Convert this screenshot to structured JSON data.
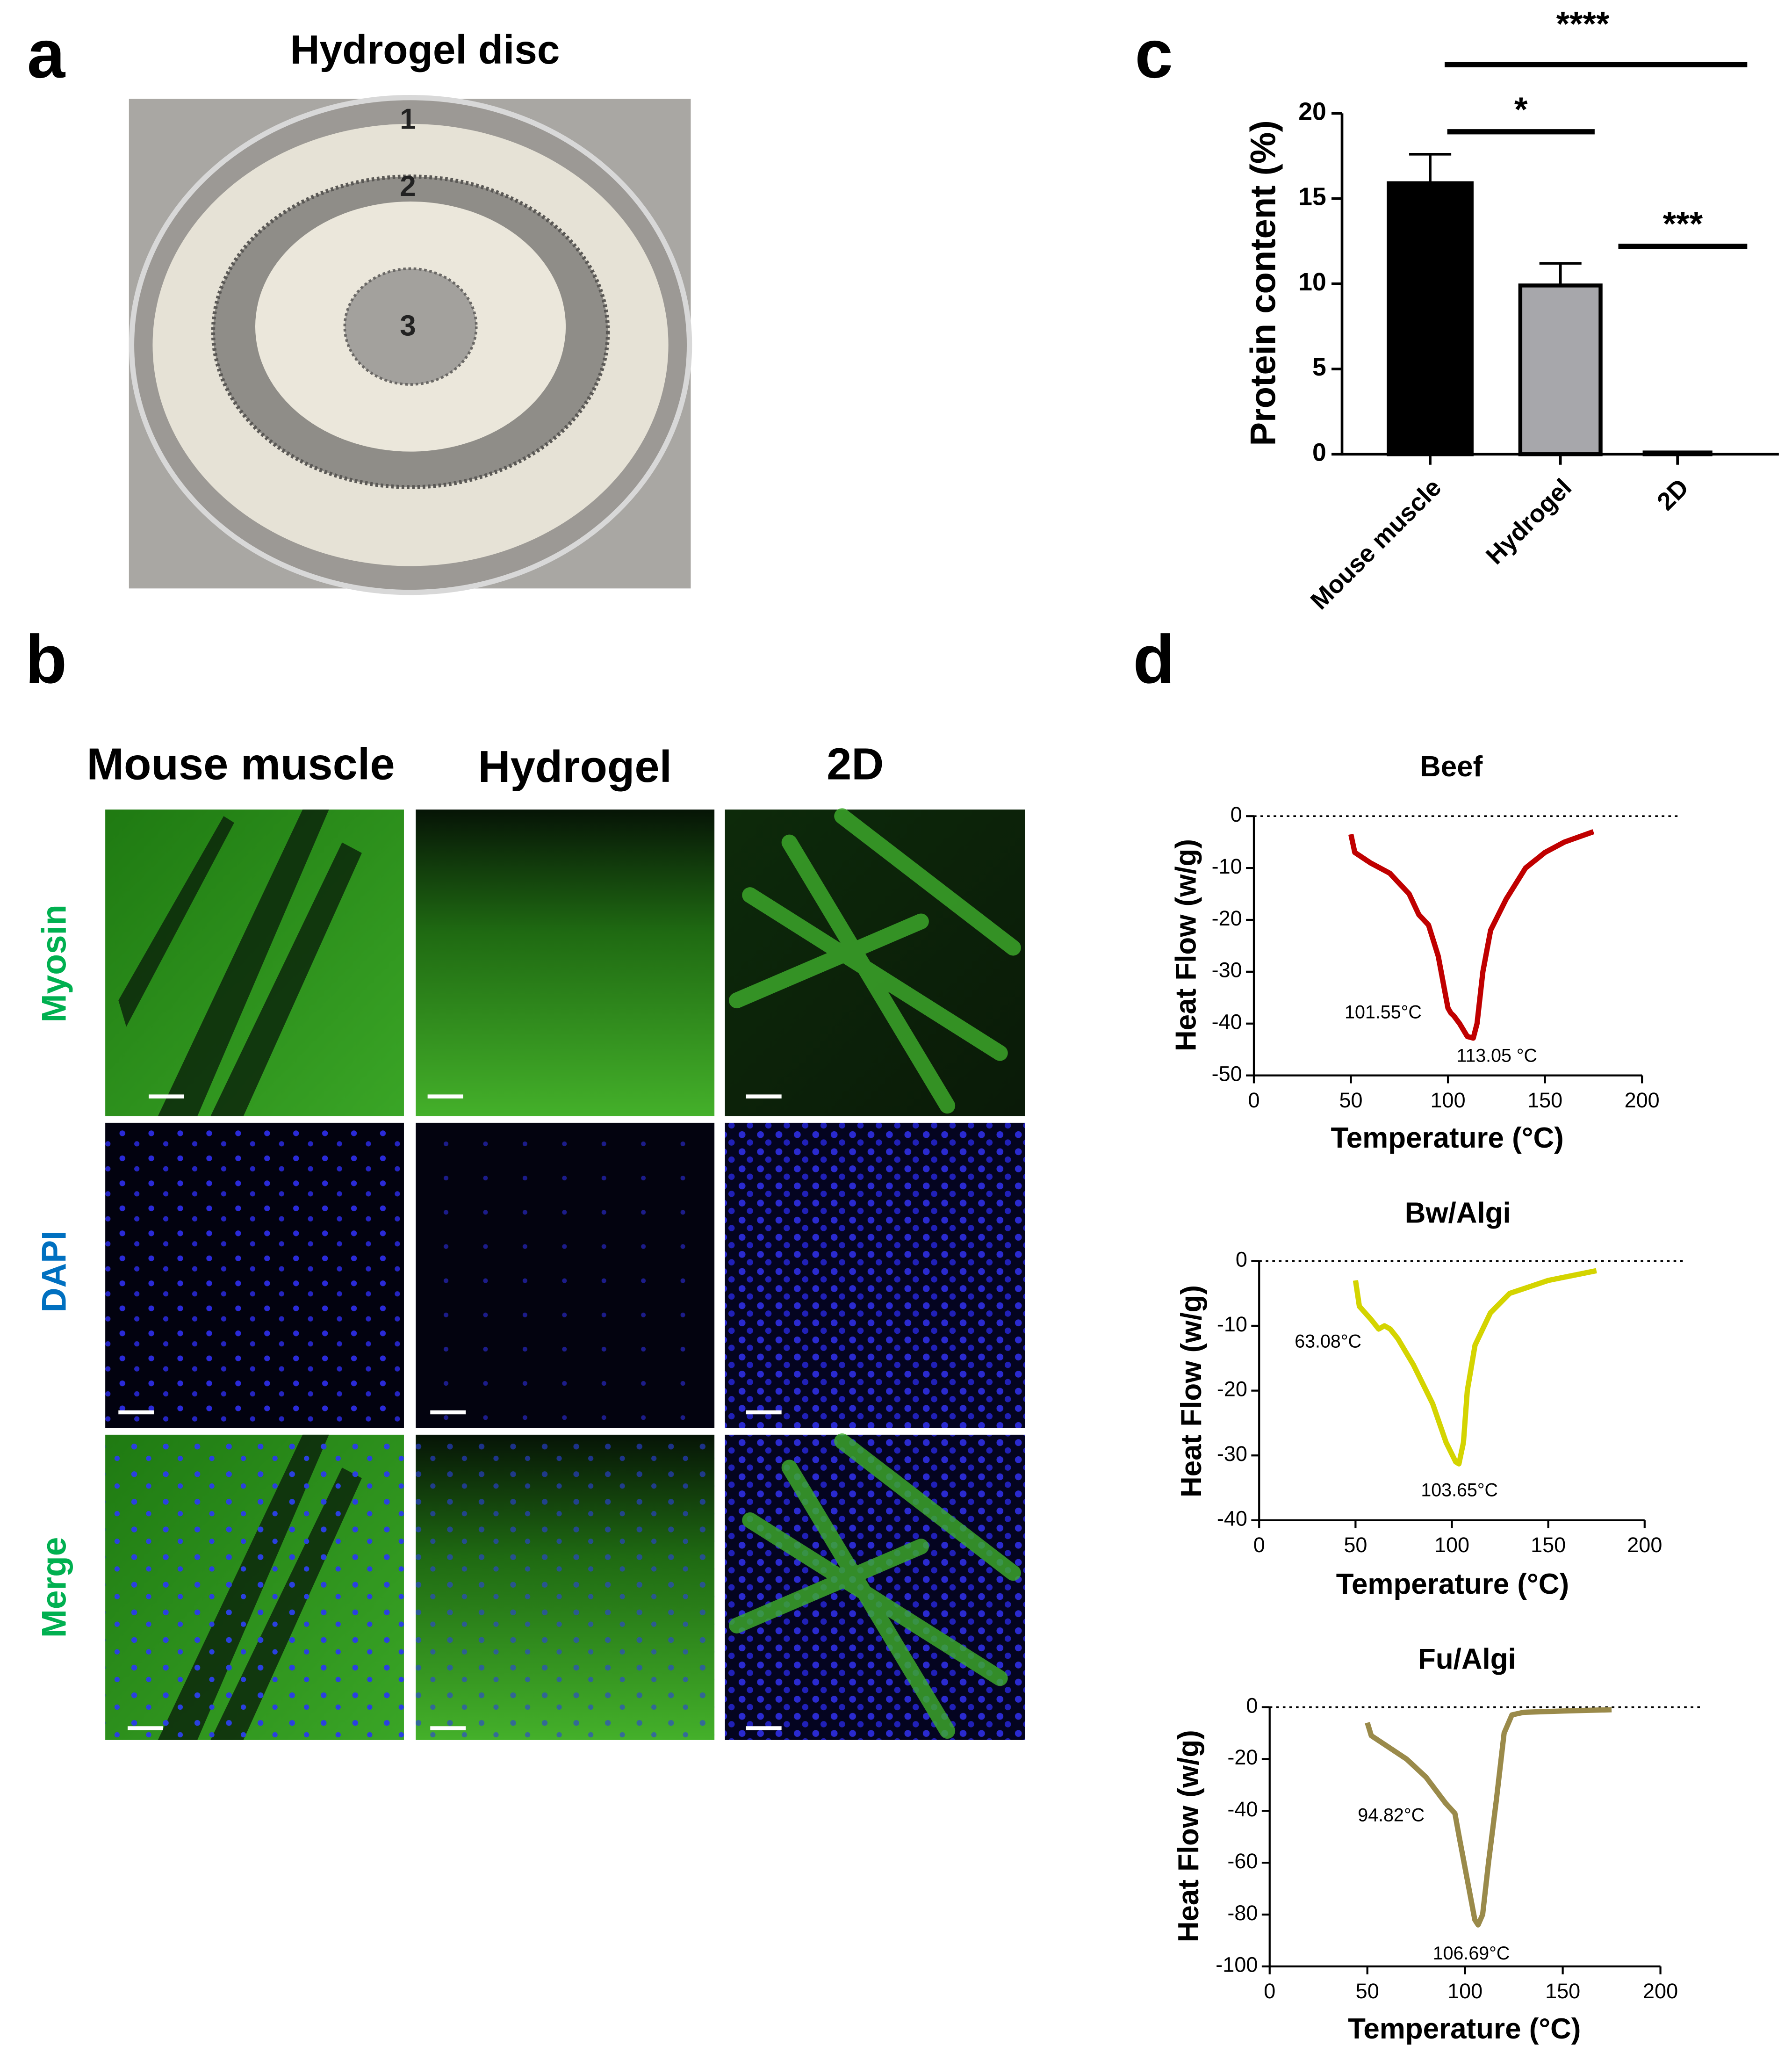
{
  "panels": {
    "a": {
      "letter": "a",
      "title": "Hydrogel disc",
      "ring_labels": [
        "1",
        "2",
        "3"
      ]
    },
    "b": {
      "letter": "b",
      "columns": [
        "Mouse muscle",
        "Hydrogel",
        "2D"
      ],
      "rows": [
        "Myosin",
        "DAPI",
        "Merge"
      ],
      "row_colors": [
        "#00b050",
        "#0070c0",
        "#00b050"
      ]
    }
  },
  "chart_data": [
    {
      "type": "bar",
      "letter": "c",
      "ylabel": "Protein content (%)",
      "categories": [
        "Mouse muscle",
        "Hydrogel",
        "2D"
      ],
      "values": [
        15.9,
        9.9,
        0.1
      ],
      "errors": [
        1.7,
        1.3,
        0
      ],
      "colors": [
        "#000000",
        "#a7a7ab",
        "#000000"
      ],
      "ylim": [
        0,
        20
      ],
      "yticks": [
        0,
        5,
        10,
        15,
        20
      ],
      "significance": [
        {
          "label": "****",
          "groups": [
            "Mouse muscle",
            "2D"
          ]
        },
        {
          "label": "*",
          "groups": [
            "Mouse muscle",
            "Hydrogel"
          ]
        },
        {
          "label": "***",
          "groups": [
            "Hydrogel",
            "2D"
          ]
        }
      ]
    },
    {
      "type": "line",
      "letter": "d",
      "title": "Beef",
      "xlabel": "Temperature (°C)",
      "ylabel": "Heat Flow (w/g)",
      "color": "#c00000",
      "x": [
        50,
        52,
        60,
        70,
        80,
        85,
        90,
        95,
        100,
        101.55,
        103,
        106,
        110,
        113.05,
        115,
        118,
        122,
        130,
        140,
        150,
        160,
        175
      ],
      "values": [
        -3.5,
        -7,
        -9,
        -11,
        -15,
        -19,
        -21,
        -27,
        -37,
        -38,
        -38.5,
        -40,
        -42.5,
        -42.8,
        -40,
        -30,
        -22,
        -16,
        -10,
        -7,
        -5,
        -3
      ],
      "xlim": [
        0,
        200
      ],
      "xticks": [
        0,
        50,
        100,
        150,
        200
      ],
      "ylim": [
        -50,
        0
      ],
      "yticks": [
        0,
        -10,
        -20,
        -30,
        -40,
        -50
      ],
      "annotations": [
        "101.55°C",
        "113.05 °C"
      ]
    },
    {
      "type": "line",
      "title": "Bw/Algi",
      "xlabel": "Temperature (°C)",
      "ylabel": "Heat Flow (w/g)",
      "color": "#d4d400",
      "x": [
        50,
        52,
        58,
        62,
        65,
        68,
        72,
        80,
        90,
        97,
        102,
        103.65,
        106,
        108,
        112,
        120,
        130,
        150,
        175
      ],
      "values": [
        -3,
        -7,
        -9,
        -10.5,
        -10,
        -10.5,
        -12,
        -16,
        -22,
        -28,
        -31,
        -31.3,
        -28,
        -20,
        -13,
        -8,
        -5,
        -3,
        -1.5
      ],
      "xlim": [
        0,
        200
      ],
      "xticks": [
        0,
        50,
        100,
        150,
        200
      ],
      "ylim": [
        -40,
        0
      ],
      "yticks": [
        0,
        -10,
        -20,
        -30,
        -40
      ],
      "annotations": [
        "63.08°C",
        "103.65°C"
      ]
    },
    {
      "type": "line",
      "title": "Fu/Algi",
      "xlabel": "Temperature (°C)",
      "ylabel": "Heat Flow (w/g)",
      "color": "#9a8a4a",
      "x": [
        50,
        52,
        60,
        70,
        80,
        90,
        94.82,
        97,
        102,
        105,
        106.69,
        109,
        112,
        116,
        120,
        124,
        130,
        150,
        175
      ],
      "values": [
        -6,
        -11,
        -15,
        -20,
        -27,
        -37,
        -41,
        -50,
        -70,
        -82,
        -84,
        -80,
        -60,
        -36,
        -10,
        -3,
        -2,
        -1.5,
        -1
      ],
      "xlim": [
        0,
        200
      ],
      "xticks": [
        0,
        50,
        100,
        150,
        200
      ],
      "ylim": [
        -100,
        0
      ],
      "yticks": [
        0,
        -20,
        -40,
        -60,
        -80,
        -100
      ],
      "annotations": [
        "94.82°C",
        "106.69°C"
      ]
    }
  ]
}
